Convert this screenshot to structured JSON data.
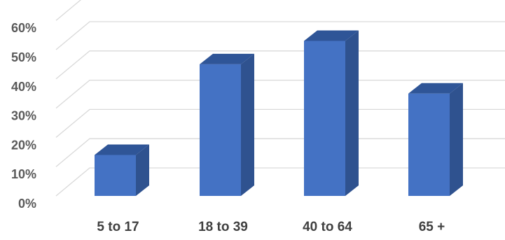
{
  "chart_data": {
    "type": "bar",
    "style": "3d-column",
    "categories": [
      "5 to 17",
      "18 to 39",
      "40 to 64",
      "65 +"
    ],
    "values": [
      14,
      45,
      53,
      35
    ],
    "unit": "%",
    "ylim": [
      0,
      60
    ],
    "yticks": [
      "0%",
      "10%",
      "20%",
      "30%",
      "40%",
      "50%",
      "60%"
    ],
    "grid": true,
    "legend": "none",
    "colors": {
      "front": "#4472c4",
      "side": "#2f528f",
      "top": "#2f5597",
      "grid": "#d9d9d9"
    }
  }
}
